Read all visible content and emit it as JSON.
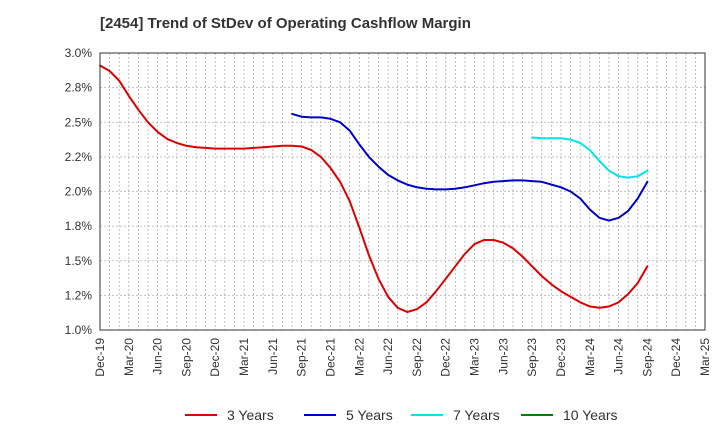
{
  "chart_data": {
    "type": "line",
    "title": "[2454]  Trend of StDev of Operating Cashflow Margin",
    "xlabel": "",
    "ylabel": "",
    "ylim": [
      1.0,
      3.0
    ],
    "yticks": [
      "1.0%",
      "1.2%",
      "1.5%",
      "1.8%",
      "2.0%",
      "2.2%",
      "2.5%",
      "2.8%",
      "3.0%"
    ],
    "xticks": [
      "Dec-19",
      "Mar-20",
      "Jun-20",
      "Sep-20",
      "Dec-20",
      "Mar-21",
      "Jun-21",
      "Sep-21",
      "Dec-21",
      "Mar-22",
      "Jun-22",
      "Sep-22",
      "Dec-22",
      "Mar-23",
      "Jun-23",
      "Sep-23",
      "Dec-23",
      "Mar-24",
      "Jun-24",
      "Sep-24",
      "Dec-24",
      "Mar-25"
    ],
    "grid": true,
    "legend_position": "bottom",
    "series": [
      {
        "name": "3 Years",
        "color": "#dd0000",
        "points": [
          [
            "Dec-19",
            2.91
          ],
          [
            "Jan-20",
            2.87
          ],
          [
            "Feb-20",
            2.8
          ],
          [
            "Mar-20",
            2.69
          ],
          [
            "Apr-20",
            2.59
          ],
          [
            "May-20",
            2.5
          ],
          [
            "Jun-20",
            2.43
          ],
          [
            "Jul-20",
            2.38
          ],
          [
            "Aug-20",
            2.35
          ],
          [
            "Sep-20",
            2.33
          ],
          [
            "Oct-20",
            2.32
          ],
          [
            "Nov-20",
            2.315
          ],
          [
            "Dec-20",
            2.31
          ],
          [
            "Jan-21",
            2.31
          ],
          [
            "Feb-21",
            2.31
          ],
          [
            "Mar-21",
            2.31
          ],
          [
            "Apr-21",
            2.315
          ],
          [
            "May-21",
            2.32
          ],
          [
            "Jun-21",
            2.325
          ],
          [
            "Jul-21",
            2.33
          ],
          [
            "Aug-21",
            2.33
          ],
          [
            "Sep-21",
            2.325
          ],
          [
            "Oct-21",
            2.3
          ],
          [
            "Nov-21",
            2.25
          ],
          [
            "Dec-21",
            2.17
          ],
          [
            "Jan-22",
            2.07
          ],
          [
            "Feb-22",
            1.93
          ],
          [
            "Mar-22",
            1.74
          ],
          [
            "Apr-22",
            1.54
          ],
          [
            "May-22",
            1.37
          ],
          [
            "Jun-22",
            1.24
          ],
          [
            "Jul-22",
            1.16
          ],
          [
            "Aug-22",
            1.13
          ],
          [
            "Sep-22",
            1.15
          ],
          [
            "Oct-22",
            1.2
          ],
          [
            "Nov-22",
            1.28
          ],
          [
            "Dec-22",
            1.37
          ],
          [
            "Jan-23",
            1.46
          ],
          [
            "Feb-23",
            1.55
          ],
          [
            "Mar-23",
            1.62
          ],
          [
            "Apr-23",
            1.65
          ],
          [
            "May-23",
            1.65
          ],
          [
            "Jun-23",
            1.63
          ],
          [
            "Jul-23",
            1.59
          ],
          [
            "Aug-23",
            1.53
          ],
          [
            "Sep-23",
            1.46
          ],
          [
            "Oct-23",
            1.39
          ],
          [
            "Nov-23",
            1.33
          ],
          [
            "Dec-23",
            1.28
          ],
          [
            "Jan-24",
            1.24
          ],
          [
            "Feb-24",
            1.2
          ],
          [
            "Mar-24",
            1.17
          ],
          [
            "Apr-24",
            1.16
          ],
          [
            "May-24",
            1.17
          ],
          [
            "Jun-24",
            1.2
          ],
          [
            "Jul-24",
            1.26
          ],
          [
            "Aug-24",
            1.34
          ],
          [
            "Sep-24",
            1.46
          ]
        ]
      },
      {
        "name": "5 Years",
        "color": "#0000cc",
        "points": [
          [
            "Aug-21",
            2.56
          ],
          [
            "Sep-21",
            2.54
          ],
          [
            "Oct-21",
            2.535
          ],
          [
            "Nov-21",
            2.535
          ],
          [
            "Dec-21",
            2.525
          ],
          [
            "Jan-22",
            2.5
          ],
          [
            "Feb-22",
            2.44
          ],
          [
            "Mar-22",
            2.34
          ],
          [
            "Apr-22",
            2.25
          ],
          [
            "May-22",
            2.18
          ],
          [
            "Jun-22",
            2.12
          ],
          [
            "Jul-22",
            2.08
          ],
          [
            "Aug-22",
            2.05
          ],
          [
            "Sep-22",
            2.03
          ],
          [
            "Oct-22",
            2.02
          ],
          [
            "Nov-22",
            2.015
          ],
          [
            "Dec-22",
            2.015
          ],
          [
            "Jan-23",
            2.02
          ],
          [
            "Feb-23",
            2.03
          ],
          [
            "Mar-23",
            2.045
          ],
          [
            "Apr-23",
            2.06
          ],
          [
            "May-23",
            2.07
          ],
          [
            "Jun-23",
            2.075
          ],
          [
            "Jul-23",
            2.08
          ],
          [
            "Aug-23",
            2.08
          ],
          [
            "Sep-23",
            2.075
          ],
          [
            "Oct-23",
            2.07
          ],
          [
            "Nov-23",
            2.05
          ],
          [
            "Dec-23",
            2.03
          ],
          [
            "Jan-24",
            2.0
          ],
          [
            "Feb-24",
            1.95
          ],
          [
            "Mar-24",
            1.87
          ],
          [
            "Apr-24",
            1.81
          ],
          [
            "May-24",
            1.79
          ],
          [
            "Jun-24",
            1.81
          ],
          [
            "Jul-24",
            1.86
          ],
          [
            "Aug-24",
            1.95
          ],
          [
            "Sep-24",
            2.07
          ]
        ]
      },
      {
        "name": "7 Years",
        "color": "#00e5e5",
        "points": [
          [
            "Sep-23",
            2.39
          ],
          [
            "Oct-23",
            2.385
          ],
          [
            "Nov-23",
            2.385
          ],
          [
            "Dec-23",
            2.385
          ],
          [
            "Jan-24",
            2.375
          ],
          [
            "Feb-24",
            2.35
          ],
          [
            "Mar-24",
            2.3
          ],
          [
            "Apr-24",
            2.22
          ],
          [
            "May-24",
            2.15
          ],
          [
            "Jun-24",
            2.11
          ],
          [
            "Jul-24",
            2.1
          ],
          [
            "Aug-24",
            2.11
          ],
          [
            "Sep-24",
            2.15
          ]
        ]
      },
      {
        "name": "10 Years",
        "color": "#008000",
        "points": []
      }
    ]
  }
}
